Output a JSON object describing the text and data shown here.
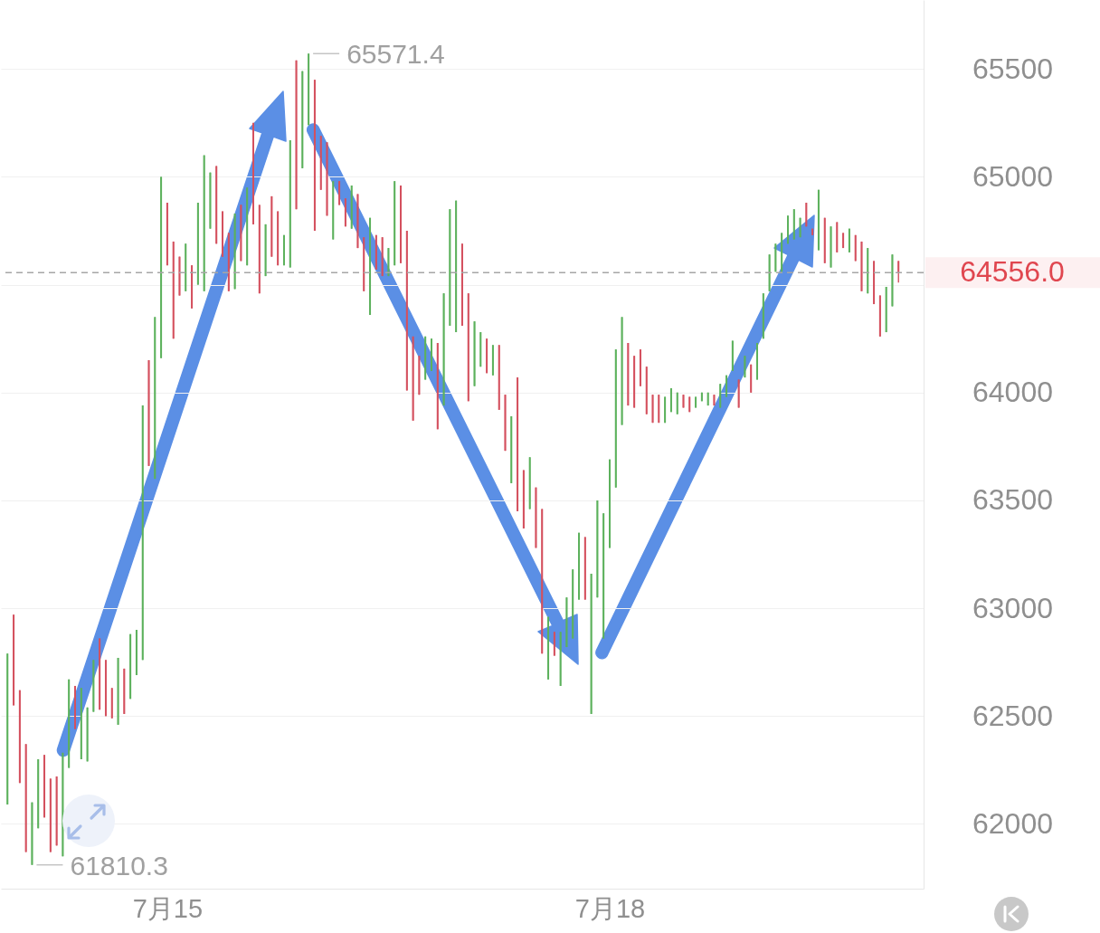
{
  "chart_data": {
    "type": "candlestick",
    "categories": [
      null,
      null,
      null,
      null,
      null,
      null,
      null,
      null,
      null,
      null,
      null,
      null,
      null,
      null,
      null,
      null,
      null,
      null,
      null,
      null,
      null,
      null,
      null,
      null,
      null,
      null,
      "7月15",
      null,
      null,
      null,
      null,
      null,
      null,
      null,
      null,
      null,
      null,
      null,
      null,
      null,
      null,
      null,
      null,
      null,
      null,
      null,
      null,
      null,
      null,
      null,
      null,
      null,
      null,
      null,
      null,
      null,
      null,
      null,
      null,
      null,
      null,
      null,
      null,
      null,
      null,
      null,
      null,
      null,
      null,
      null,
      null,
      null,
      null,
      null,
      null,
      null,
      null,
      null,
      null,
      null,
      null,
      null,
      null,
      null,
      null,
      null,
      null,
      null,
      null,
      null,
      null,
      null,
      null,
      null,
      null,
      null,
      null,
      null,
      "7月18",
      null,
      null,
      null,
      null,
      null,
      null,
      null,
      null,
      null,
      null,
      null,
      null,
      null,
      null,
      null,
      null,
      null,
      null,
      null,
      null,
      null,
      null,
      null,
      null,
      null,
      null,
      null,
      null,
      null,
      null,
      null,
      null,
      null,
      null,
      null,
      null,
      null,
      null,
      null,
      null,
      null,
      null,
      null,
      null,
      null,
      null,
      null
    ],
    "ohlc": [
      [
        62090,
        62790,
        62090,
        62790
      ],
      [
        62970,
        62970,
        62550,
        62550
      ],
      [
        62620,
        62620,
        62190,
        62190
      ],
      [
        62370,
        62370,
        61870,
        61870
      ],
      [
        61810.3,
        62100,
        61810.3,
        62100
      ],
      [
        61980,
        62300,
        61980,
        62300
      ],
      [
        62320,
        62320,
        62030,
        62030
      ],
      [
        62210,
        62210,
        61870,
        61870
      ],
      [
        62220,
        62220,
        61900,
        61900
      ],
      [
        61850,
        62330,
        61850,
        62330
      ],
      [
        62260,
        62670,
        62260,
        62670
      ],
      [
        62640,
        62640,
        62440,
        62440
      ],
      [
        62300,
        62630,
        62300,
        62630
      ],
      [
        62290,
        62540,
        62290,
        62540
      ],
      [
        62520,
        62760,
        62520,
        62760
      ],
      [
        62860,
        62860,
        62530,
        62530
      ],
      [
        62760,
        62760,
        62500,
        62500
      ],
      [
        62630,
        62630,
        62490,
        62490
      ],
      [
        62460,
        62770,
        62460,
        62770
      ],
      [
        62720,
        62720,
        62510,
        62510
      ],
      [
        62580,
        62880,
        62580,
        62880
      ],
      [
        62690,
        62900,
        62690,
        62900
      ],
      [
        62760,
        63940,
        62760,
        63940
      ],
      [
        64150,
        64150,
        63660,
        63660
      ],
      [
        63600,
        64350,
        63600,
        64350
      ],
      [
        64160,
        65000,
        64160,
        65000
      ],
      [
        64880,
        64880,
        64590,
        64590
      ],
      [
        64700,
        64700,
        64250,
        64250
      ],
      [
        64630,
        64630,
        64450,
        64450
      ],
      [
        64470,
        64690,
        64470,
        64690
      ],
      [
        64590,
        64590,
        64390,
        64390
      ],
      [
        64500,
        64880,
        64500,
        64880
      ],
      [
        64470,
        65100,
        64470,
        65100
      ],
      [
        64760,
        65020,
        64760,
        65020
      ],
      [
        65050,
        65050,
        64690,
        64690
      ],
      [
        64840,
        64840,
        64630,
        64630
      ],
      [
        64740,
        64740,
        64470,
        64470
      ],
      [
        64480,
        64830,
        64480,
        64830
      ],
      [
        64870,
        64870,
        64610,
        64610
      ],
      [
        64590,
        64950,
        64590,
        64950
      ],
      [
        65250,
        65250,
        64780,
        64780
      ],
      [
        64870,
        64870,
        64460,
        64460
      ],
      [
        64540,
        64780,
        64540,
        64780
      ],
      [
        64910,
        64910,
        64630,
        64630
      ],
      [
        64840,
        64840,
        64590,
        64590
      ],
      [
        64590,
        64730,
        64590,
        64730
      ],
      [
        64580,
        65170,
        64580,
        65170
      ],
      [
        65540,
        65540,
        64850,
        64850
      ],
      [
        65040,
        65490,
        65040,
        65490
      ],
      [
        65240,
        65571.4,
        65240,
        65571.4
      ],
      [
        65450,
        65450,
        64750,
        64750
      ],
      [
        65190,
        65190,
        64940,
        64940
      ],
      [
        65160,
        65160,
        64820,
        64820
      ],
      [
        64710,
        64980,
        64710,
        64980
      ],
      [
        64980,
        64980,
        64870,
        64870
      ],
      [
        64900,
        64900,
        64770,
        64770
      ],
      [
        64760,
        64960,
        64760,
        64960
      ],
      [
        64920,
        64920,
        64670,
        64670
      ],
      [
        64720,
        64720,
        64470,
        64470
      ],
      [
        64360,
        64810,
        64360,
        64810
      ],
      [
        64730,
        64730,
        64570,
        64570
      ],
      [
        64720,
        64720,
        64540,
        64540
      ],
      [
        64540,
        64670,
        64540,
        64670
      ],
      [
        64590,
        64980,
        64590,
        64980
      ],
      [
        64960,
        64960,
        64600,
        64600
      ],
      [
        64750,
        64750,
        64010,
        64010
      ],
      [
        64260,
        64260,
        63870,
        63870
      ],
      [
        64170,
        64170,
        63990,
        63990
      ],
      [
        64060,
        64260,
        64060,
        64260
      ],
      [
        64100,
        64250,
        64100,
        64250
      ],
      [
        64230,
        64230,
        63830,
        63830
      ],
      [
        63940,
        64460,
        63940,
        64460
      ],
      [
        64310,
        64850,
        64310,
        64850
      ],
      [
        64280,
        64890,
        64280,
        64890
      ],
      [
        64690,
        64690,
        64310,
        64310
      ],
      [
        64460,
        64460,
        63960,
        63960
      ],
      [
        64030,
        64330,
        64030,
        64330
      ],
      [
        64120,
        64280,
        64120,
        64280
      ],
      [
        64250,
        64250,
        64090,
        64090
      ],
      [
        64080,
        64220,
        64080,
        64220
      ],
      [
        64220,
        64220,
        63920,
        63920
      ],
      [
        63990,
        63990,
        63730,
        63730
      ],
      [
        63580,
        63890,
        63580,
        63890
      ],
      [
        64070,
        64070,
        63450,
        63450
      ],
      [
        63640,
        63640,
        63370,
        63370
      ],
      [
        63460,
        63700,
        63460,
        63700
      ],
      [
        63560,
        63560,
        63280,
        63280
      ],
      [
        63460,
        63460,
        62790,
        62790
      ],
      [
        62670,
        62960,
        62670,
        62960
      ],
      [
        62890,
        62890,
        62780,
        62780
      ],
      [
        62640,
        62890,
        62640,
        62890
      ],
      [
        62820,
        63050,
        62820,
        63050
      ],
      [
        62860,
        63180,
        62860,
        63180
      ],
      [
        63040,
        63350,
        63040,
        63350
      ],
      [
        63330,
        63330,
        63040,
        63040
      ],
      [
        62510,
        63160,
        62510,
        63160
      ],
      [
        63050,
        63500,
        63050,
        63500
      ],
      [
        62860,
        63440,
        62860,
        63440
      ],
      [
        63280,
        63690,
        63280,
        63690
      ],
      [
        63560,
        64200,
        63560,
        64200
      ],
      [
        63850,
        64350,
        63850,
        64350
      ],
      [
        64230,
        64230,
        63940,
        63940
      ],
      [
        64170,
        64170,
        63930,
        63930
      ],
      [
        64200,
        64200,
        64030,
        64030
      ],
      [
        64120,
        64120,
        63900,
        63900
      ],
      [
        63990,
        63990,
        63860,
        63860
      ],
      [
        63990,
        63990,
        63860,
        63860
      ],
      [
        63860,
        63980,
        63860,
        63980
      ],
      [
        63910,
        64020,
        63910,
        64020
      ],
      [
        63900,
        64000,
        63900,
        64000
      ],
      [
        63990,
        63990,
        63930,
        63930
      ],
      [
        63980,
        63980,
        63910,
        63910
      ],
      [
        63930,
        63980,
        63930,
        63980
      ],
      [
        63960,
        64000,
        63960,
        64000
      ],
      [
        63940,
        64000,
        63940,
        64000
      ],
      [
        63990,
        63990,
        63940,
        63940
      ],
      [
        63930,
        64040,
        63930,
        64040
      ],
      [
        63980,
        64080,
        63980,
        64080
      ],
      [
        64100,
        64240,
        64100,
        64240
      ],
      [
        64060,
        64060,
        63930,
        63930
      ],
      [
        64070,
        64170,
        64070,
        64170
      ],
      [
        64130,
        64130,
        64000,
        64000
      ],
      [
        64060,
        64230,
        64060,
        64230
      ],
      [
        64250,
        64460,
        64250,
        64460
      ],
      [
        64470,
        64640,
        64470,
        64640
      ],
      [
        64560,
        64690,
        64560,
        64690
      ],
      [
        64560,
        64740,
        64560,
        64740
      ],
      [
        64690,
        64820,
        64690,
        64820
      ],
      [
        64710,
        64850,
        64710,
        64850
      ],
      [
        64720,
        64810,
        64720,
        64810
      ],
      [
        64880,
        64880,
        64770,
        64770
      ],
      [
        64760,
        64760,
        64730,
        64730
      ],
      [
        64660,
        64940,
        64660,
        64940
      ],
      [
        64810,
        64810,
        64600,
        64600
      ],
      [
        64580,
        64770,
        64580,
        64770
      ],
      [
        64790,
        64790,
        64650,
        64650
      ],
      [
        64740,
        64740,
        64670,
        64670
      ],
      [
        64650,
        64760,
        64650,
        64760
      ],
      [
        64730,
        64730,
        64610,
        64610
      ],
      [
        64700,
        64700,
        64470,
        64470
      ],
      [
        64460,
        64670,
        64460,
        64670
      ],
      [
        64610,
        64610,
        64410,
        64410
      ],
      [
        64450,
        64450,
        64260,
        64260
      ],
      [
        64280,
        64490,
        64280,
        64490
      ],
      [
        64400,
        64640,
        64400,
        64640
      ],
      [
        64610,
        64610,
        64510,
        64556
      ]
    ],
    "colors": [
      "#5cb15c",
      "#d4505e",
      "#d4505e",
      "#d4505e",
      "#5cb15c",
      "#5cb15c",
      "#d4505e",
      "#d4505e",
      "#d4505e",
      "#5cb15c",
      "#5cb15c",
      "#d4505e",
      "#5cb15c",
      "#5cb15c",
      "#5cb15c",
      "#d4505e",
      "#d4505e",
      "#d4505e",
      "#5cb15c",
      "#d4505e",
      "#5cb15c",
      "#5cb15c",
      "#5cb15c",
      "#d4505e",
      "#5cb15c",
      "#5cb15c",
      "#d4505e",
      "#d4505e",
      "#d4505e",
      "#5cb15c",
      "#d4505e",
      "#5cb15c",
      "#5cb15c",
      "#5cb15c",
      "#d4505e",
      "#d4505e",
      "#d4505e",
      "#5cb15c",
      "#d4505e",
      "#5cb15c",
      "#d4505e",
      "#d4505e",
      "#5cb15c",
      "#d4505e",
      "#d4505e",
      "#5cb15c",
      "#5cb15c",
      "#d4505e",
      "#5cb15c",
      "#5cb15c",
      "#d4505e",
      "#d4505e",
      "#d4505e",
      "#5cb15c",
      "#d4505e",
      "#d4505e",
      "#5cb15c",
      "#d4505e",
      "#d4505e",
      "#5cb15c",
      "#d4505e",
      "#d4505e",
      "#5cb15c",
      "#5cb15c",
      "#d4505e",
      "#d4505e",
      "#d4505e",
      "#d4505e",
      "#5cb15c",
      "#5cb15c",
      "#d4505e",
      "#5cb15c",
      "#5cb15c",
      "#5cb15c",
      "#d4505e",
      "#d4505e",
      "#5cb15c",
      "#5cb15c",
      "#d4505e",
      "#5cb15c",
      "#d4505e",
      "#d4505e",
      "#5cb15c",
      "#d4505e",
      "#d4505e",
      "#5cb15c",
      "#d4505e",
      "#d4505e",
      "#5cb15c",
      "#d4505e",
      "#5cb15c",
      "#5cb15c",
      "#5cb15c",
      "#5cb15c",
      "#d4505e",
      "#5cb15c",
      "#5cb15c",
      "#5cb15c",
      "#5cb15c",
      "#5cb15c",
      "#5cb15c",
      "#d4505e",
      "#d4505e",
      "#d4505e",
      "#d4505e",
      "#d4505e",
      "#d4505e",
      "#5cb15c",
      "#5cb15c",
      "#5cb15c",
      "#d4505e",
      "#d4505e",
      "#5cb15c",
      "#5cb15c",
      "#5cb15c",
      "#d4505e",
      "#5cb15c",
      "#5cb15c",
      "#5cb15c",
      "#d4505e",
      "#5cb15c",
      "#d4505e",
      "#5cb15c",
      "#5cb15c",
      "#5cb15c",
      "#5cb15c",
      "#5cb15c",
      "#5cb15c",
      "#5cb15c",
      "#5cb15c",
      "#d4505e",
      "#d4505e",
      "#5cb15c",
      "#d4505e",
      "#5cb15c",
      "#d4505e",
      "#d4505e",
      "#5cb15c",
      "#d4505e",
      "#d4505e",
      "#5cb15c",
      "#d4505e",
      "#d4505e",
      "#5cb15c",
      "#5cb15c",
      "#d4505e"
    ],
    "ylim": [
      61700,
      65820
    ],
    "yticks": [
      62000,
      62500,
      63000,
      63500,
      64000,
      {
        "value": 64500,
        "label": null
      },
      65000,
      65500
    ],
    "grid": "y",
    "ref_lines": [
      {
        "axis": "y",
        "value": 64556.0,
        "label": "64556.0",
        "color": "#a6a6a6",
        "line_style": "dashed"
      }
    ],
    "annotations": [
      "65571.4",
      "61810.3"
    ]
  }
}
